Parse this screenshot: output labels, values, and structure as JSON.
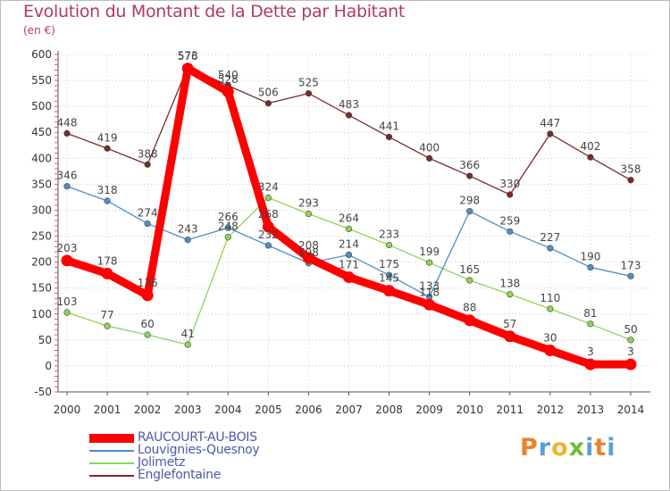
{
  "header": {
    "title": "Evolution du Montant de la Dette par Habitant",
    "subtitle": "(en €)"
  },
  "brand": {
    "name": "Proxiti",
    "letters": [
      {
        "ch": "P",
        "color": "#e8832a"
      },
      {
        "ch": "r",
        "color": "#5aa0d6"
      },
      {
        "ch": "o",
        "color": "#f0b429"
      },
      {
        "ch": "x",
        "color": "#6cbf3a"
      },
      {
        "ch": "i",
        "color": "#5aa0d6"
      },
      {
        "ch": "t",
        "color": "#e8832a"
      },
      {
        "ch": "i",
        "color": "#5aa0d6"
      }
    ]
  },
  "chart_data": {
    "type": "line",
    "title": "Evolution du Montant de la Dette par Habitant",
    "subtitle": "(en €)",
    "x": [
      "2000",
      "2001",
      "2002",
      "2003",
      "2004",
      "2005",
      "2006",
      "2007",
      "2008",
      "2009",
      "2010",
      "2011",
      "2012",
      "2013",
      "2014"
    ],
    "ylim": [
      -50,
      600
    ],
    "yticks": [
      -50,
      0,
      50,
      100,
      150,
      200,
      250,
      300,
      350,
      400,
      450,
      500,
      550,
      600
    ],
    "grid": true,
    "legend_position": "bottom-left",
    "series": [
      {
        "name": "RAUCOURT-AU-BOIS",
        "color": "#ff0000",
        "values": [
          203,
          178,
          136,
          573,
          528,
          268,
          208,
          171,
          145,
          118,
          88,
          57,
          30,
          3,
          3
        ]
      },
      {
        "name": "Louvignies-Quesnoy",
        "color": "#4f8fc4",
        "values": [
          346,
          318,
          274,
          243,
          266,
          232,
          198,
          214,
          175,
          133,
          298,
          259,
          227,
          190,
          173
        ]
      },
      {
        "name": "Jolimetz",
        "color": "#8ed45a",
        "values": [
          103,
          77,
          60,
          41,
          248,
          324,
          293,
          264,
          233,
          199,
          165,
          138,
          110,
          81,
          50
        ]
      },
      {
        "name": "Englefontaine",
        "color": "#7a2a2a",
        "values": [
          448,
          419,
          388,
          576,
          540,
          506,
          525,
          483,
          441,
          400,
          366,
          330,
          447,
          402,
          358
        ]
      }
    ]
  }
}
